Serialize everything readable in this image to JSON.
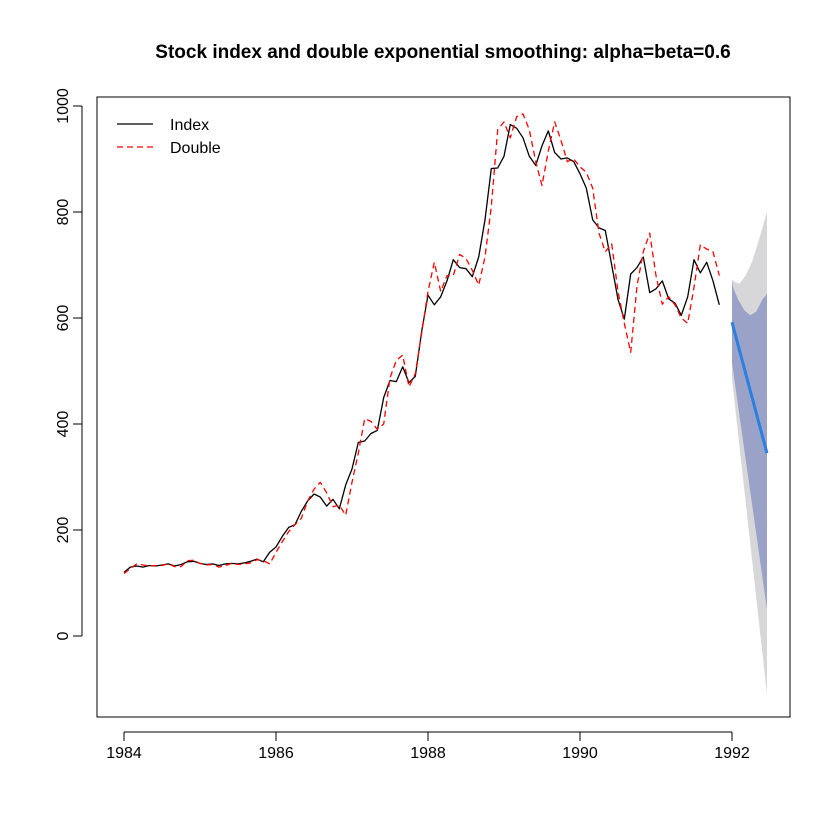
{
  "chart_data": {
    "type": "line",
    "title": "Stock index and double exponential smoothing: alpha=beta=0.6",
    "xlabel": "",
    "ylabel": "",
    "xlim": [
      1983.85,
      1992.75
    ],
    "ylim": [
      -160,
      1000
    ],
    "x_ticks": [
      1984,
      1986,
      1988,
      1990,
      1992
    ],
    "y_ticks": [
      0,
      200,
      400,
      600,
      800,
      1000
    ],
    "x_tick_labels": [
      "1984",
      "1986",
      "1988",
      "1990",
      "1992"
    ],
    "y_tick_labels": [
      "0",
      "200",
      "400",
      "600",
      "800",
      "1000"
    ],
    "legend": {
      "position": "top-left",
      "entries": [
        "Index",
        "Double"
      ]
    },
    "start": 1984.0,
    "step": 0.0833333,
    "series": [
      {
        "name": "Index",
        "color": "#000000",
        "dash": "solid",
        "values": [
          120,
          130,
          132,
          130,
          133,
          132,
          134,
          136,
          132,
          135,
          140,
          141,
          137,
          135,
          136,
          133,
          136,
          137,
          136,
          138,
          141,
          145,
          140,
          158,
          168,
          188,
          205,
          210,
          235,
          255,
          268,
          262,
          245,
          258,
          240,
          285,
          315,
          365,
          368,
          382,
          388,
          450,
          482,
          480,
          508,
          478,
          490,
          575,
          643,
          625,
          640,
          670,
          710,
          695,
          693,
          678,
          715,
          785,
          882,
          883,
          905,
          965,
          958,
          940,
          905,
          888,
          925,
          953,
          912,
          900,
          902,
          895,
          872,
          845,
          785,
          770,
          765,
          700,
          635,
          598,
          683,
          695,
          715,
          648,
          655,
          670,
          636,
          628,
          605,
          640,
          710,
          685,
          705,
          670,
          625
        ]
      },
      {
        "name": "Double",
        "color": "#ff0000",
        "dash": "dashed",
        "values": [
          118,
          127,
          136,
          134,
          132,
          133,
          133,
          136,
          131,
          131,
          142,
          143,
          137,
          134,
          135,
          130,
          133,
          137,
          135,
          136,
          138,
          144,
          142,
          136,
          158,
          178,
          197,
          210,
          222,
          255,
          277,
          290,
          270,
          244,
          247,
          228,
          290,
          345,
          410,
          405,
          390,
          400,
          487,
          520,
          530,
          470,
          495,
          572,
          650,
          705,
          650,
          680,
          680,
          720,
          712,
          690,
          662,
          715,
          810,
          955,
          970,
          940,
          980,
          985,
          955,
          895,
          850,
          915,
          970,
          935,
          895,
          900,
          885,
          875,
          845,
          760,
          725,
          740,
          650,
          590,
          535,
          660,
          725,
          760,
          680,
          626,
          640,
          625,
          600,
          590,
          658,
          738,
          730,
          725,
          680
        ]
      }
    ],
    "forecast": {
      "x": [
        1992.0,
        1992.46
      ],
      "mean": [
        592,
        345
      ],
      "hi80": [
        670,
        645
      ],
      "lo80": [
        515,
        50
      ],
      "hi95": [
        672,
        800
      ],
      "lo95": [
        485,
        -110
      ],
      "mean_color": "#2b7fe0",
      "band80_color": "#9aa2c8",
      "band95_color": "#d7d7d9",
      "hi80_shape": [
        [
          1992.0,
          670
        ],
        [
          1992.02,
          655
        ],
        [
          1992.08,
          635
        ],
        [
          1992.16,
          615
        ],
        [
          1992.24,
          605
        ],
        [
          1992.32,
          612
        ],
        [
          1992.4,
          635
        ],
        [
          1992.46,
          645
        ]
      ],
      "hi95_shape": [
        [
          1992.0,
          672
        ],
        [
          1992.04,
          668
        ],
        [
          1992.1,
          665
        ],
        [
          1992.18,
          680
        ],
        [
          1992.26,
          705
        ],
        [
          1992.34,
          740
        ],
        [
          1992.42,
          780
        ],
        [
          1992.46,
          800
        ]
      ]
    }
  }
}
